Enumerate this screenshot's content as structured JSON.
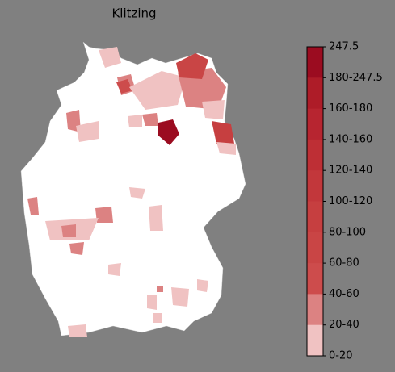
{
  "title": "Klitzing",
  "legend": {
    "ticks": [
      "247.5",
      "180-247.5",
      "160-180",
      "140-160",
      "120-140",
      "100-120",
      "80-100",
      "60-80",
      "40-60",
      "20-40",
      "0-20"
    ],
    "colors": [
      "#9b0c20",
      "#ae1c28",
      "#b72530",
      "#be2f35",
      "#c2373b",
      "#c63f40",
      "#c94545",
      "#cd4c4c",
      "#dc8282",
      "#f0c2c2",
      "#ffffff"
    ]
  }
}
